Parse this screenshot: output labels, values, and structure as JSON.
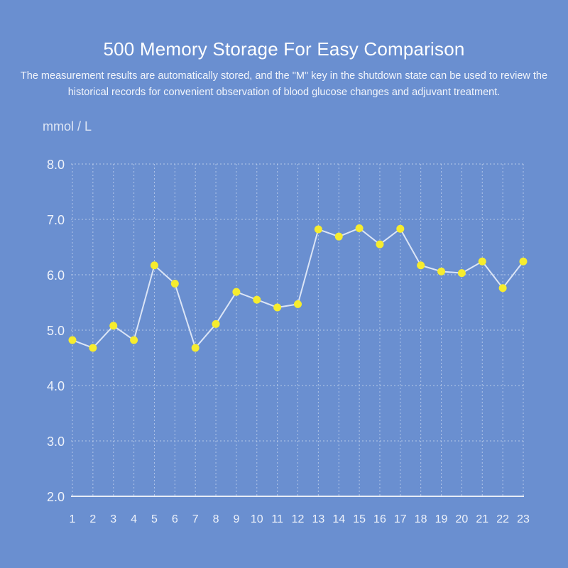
{
  "header": {
    "title": "500 Memory Storage For Easy Comparison",
    "subtitle_line1": "The measurement results are automatically stored, and the \"M\" key in the shutdown state can be used to review the",
    "subtitle_line2": "historical records for convenient observation of blood glucose changes and adjuvant treatment."
  },
  "chart_data": {
    "type": "line",
    "title": "500 Memory Storage For Easy Comparison",
    "ylabel": "mmol / L",
    "xlabel": "",
    "ylim": [
      2.0,
      8.0
    ],
    "yticks": [
      "2.0",
      "3.0",
      "4.0",
      "5.0",
      "6.0",
      "7.0",
      "8.0"
    ],
    "categories": [
      "1",
      "2",
      "3",
      "4",
      "5",
      "6",
      "7",
      "8",
      "9",
      "10",
      "11",
      "12",
      "13",
      "14",
      "15",
      "16",
      "17",
      "18",
      "19",
      "20",
      "21",
      "22",
      "23"
    ],
    "values": [
      4.82,
      4.68,
      5.08,
      4.82,
      6.17,
      5.84,
      4.68,
      5.11,
      5.69,
      5.55,
      5.41,
      5.47,
      6.82,
      6.69,
      6.84,
      6.55,
      6.83,
      6.17,
      6.06,
      6.03,
      6.24,
      5.76,
      6.24
    ],
    "grid": true,
    "colors": {
      "line": "#dbe5f6",
      "marker": "#f6ec2e",
      "grid": "#c9d7f0",
      "axis": "#eef2fa"
    }
  }
}
